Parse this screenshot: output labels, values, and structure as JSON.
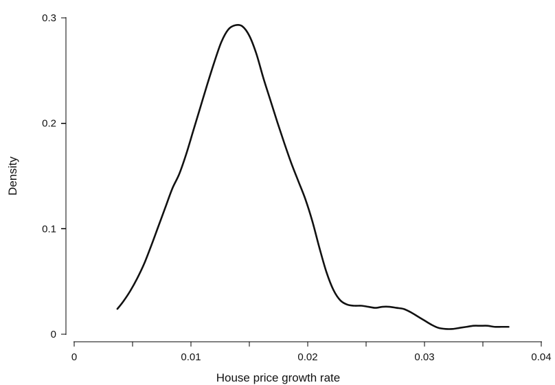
{
  "chart_data": {
    "type": "line",
    "title": "",
    "xlabel": "House price growth rate",
    "ylabel": "Density",
    "xlim": [
      0,
      0.04
    ],
    "ylim": [
      0,
      0.3
    ],
    "grid": false,
    "legend": "none",
    "line_color": "#111111",
    "x_ticks": [
      {
        "value": 0,
        "label": "0"
      },
      {
        "value": 0.01,
        "label": "0.01"
      },
      {
        "value": 0.02,
        "label": "0.02"
      },
      {
        "value": 0.03,
        "label": "0.03"
      },
      {
        "value": 0.04,
        "label": "0.04"
      }
    ],
    "x_minor_ticks": [
      0.005,
      0.015,
      0.025,
      0.035
    ],
    "y_ticks": [
      {
        "value": 0,
        "label": "0"
      },
      {
        "value": 0.1,
        "label": "0.1"
      },
      {
        "value": 0.2,
        "label": "0.2"
      },
      {
        "value": 0.3,
        "label": "0.3"
      }
    ],
    "series": [
      {
        "x": [
          0.0037,
          0.0042,
          0.0048,
          0.0054,
          0.006,
          0.0066,
          0.0072,
          0.0078,
          0.0084,
          0.009,
          0.0096,
          0.0102,
          0.0108,
          0.0114,
          0.012,
          0.0126,
          0.0132,
          0.0138,
          0.0144,
          0.015,
          0.0156,
          0.0162,
          0.0168,
          0.0174,
          0.018,
          0.0186,
          0.0192,
          0.0198,
          0.0204,
          0.021,
          0.0216,
          0.0222,
          0.0228,
          0.0234,
          0.024,
          0.0246,
          0.0252,
          0.0258,
          0.0264,
          0.027,
          0.0276,
          0.0282,
          0.0288,
          0.0294,
          0.03,
          0.0306,
          0.0312,
          0.0318,
          0.0324,
          0.033,
          0.0336,
          0.0342,
          0.0348,
          0.0354,
          0.036,
          0.0366,
          0.0372
        ],
        "y": [
          0.024,
          0.031,
          0.041,
          0.053,
          0.067,
          0.084,
          0.102,
          0.12,
          0.138,
          0.152,
          0.171,
          0.193,
          0.215,
          0.237,
          0.258,
          0.277,
          0.289,
          0.293,
          0.292,
          0.283,
          0.266,
          0.243,
          0.222,
          0.201,
          0.181,
          0.162,
          0.145,
          0.128,
          0.107,
          0.082,
          0.059,
          0.042,
          0.032,
          0.028,
          0.027,
          0.027,
          0.026,
          0.025,
          0.026,
          0.026,
          0.025,
          0.024,
          0.021,
          0.017,
          0.013,
          0.009,
          0.006,
          0.005,
          0.005,
          0.006,
          0.007,
          0.008,
          0.008,
          0.008,
          0.007,
          0.007,
          0.007
        ]
      }
    ]
  }
}
